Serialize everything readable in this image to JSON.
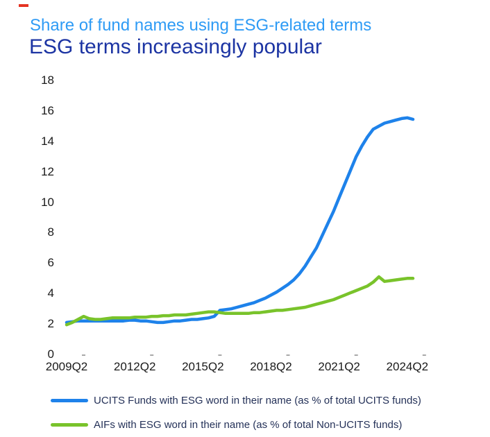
{
  "page": {
    "background": "#ffffff"
  },
  "decoration": {
    "red_dash_color": "#e53322"
  },
  "header": {
    "subtitle": "Share of fund names using ESG-related terms",
    "title": "ESG terms increasingly popular",
    "subtitle_color": "#2e9bf5",
    "title_color": "#1c34a3"
  },
  "chart_data": {
    "type": "line",
    "title": "ESG terms increasingly popular",
    "subtitle": "Share of fund names using ESG-related terms",
    "xlabel": "",
    "ylabel": "",
    "x_frequency": "quarterly",
    "x_start": "2009Q2",
    "x_end": "2024Q3",
    "ylim": [
      0,
      18
    ],
    "y_ticks": [
      0,
      2,
      4,
      6,
      8,
      10,
      12,
      14,
      16,
      18
    ],
    "x_tick_labels": [
      "2009Q2",
      "2012Q2",
      "2015Q2",
      "2018Q2",
      "2021Q2",
      "2024Q2"
    ],
    "x_tick_indices": [
      0,
      12,
      24,
      36,
      48,
      60
    ],
    "grid": false,
    "legend_position": "bottom",
    "axis_text_color": "#1a1a1a",
    "tick_mark_color": "#a8a8a8",
    "series": [
      {
        "name": "UCITS Funds with ESG word in their name (as % of total UCITS funds)",
        "color": "#1e82ea",
        "values": [
          2.1,
          2.15,
          2.2,
          2.2,
          2.2,
          2.2,
          2.2,
          2.2,
          2.2,
          2.2,
          2.2,
          2.25,
          2.25,
          2.2,
          2.2,
          2.15,
          2.1,
          2.1,
          2.15,
          2.2,
          2.2,
          2.25,
          2.3,
          2.3,
          2.35,
          2.4,
          2.5,
          2.9,
          2.95,
          3.0,
          3.1,
          3.2,
          3.3,
          3.4,
          3.55,
          3.7,
          3.9,
          4.1,
          4.35,
          4.6,
          4.9,
          5.3,
          5.8,
          6.4,
          7.0,
          7.8,
          8.6,
          9.4,
          10.3,
          11.2,
          12.1,
          13.0,
          13.7,
          14.3,
          14.8,
          15.0,
          15.2,
          15.3,
          15.4,
          15.5,
          15.55,
          15.45
        ]
      },
      {
        "name": "AIFs with ESG word in their name (as % of total Non-UCITS funds)",
        "color": "#79c32b",
        "values": [
          1.95,
          2.1,
          2.3,
          2.5,
          2.35,
          2.3,
          2.3,
          2.35,
          2.4,
          2.4,
          2.4,
          2.4,
          2.45,
          2.45,
          2.45,
          2.5,
          2.5,
          2.55,
          2.55,
          2.6,
          2.6,
          2.6,
          2.65,
          2.7,
          2.75,
          2.8,
          2.8,
          2.75,
          2.7,
          2.7,
          2.7,
          2.7,
          2.7,
          2.75,
          2.75,
          2.8,
          2.85,
          2.9,
          2.9,
          2.95,
          3.0,
          3.05,
          3.1,
          3.2,
          3.3,
          3.4,
          3.5,
          3.6,
          3.75,
          3.9,
          4.05,
          4.2,
          4.35,
          4.5,
          4.75,
          5.1,
          4.8,
          4.85,
          4.9,
          4.95,
          5.0,
          5.0
        ]
      }
    ]
  },
  "legend": {
    "items": [
      {
        "label": "UCITS Funds with ESG word in their name (as % of total UCITS funds)"
      },
      {
        "label": "AIFs with ESG word in their name (as % of total Non-UCITS funds)"
      }
    ]
  }
}
